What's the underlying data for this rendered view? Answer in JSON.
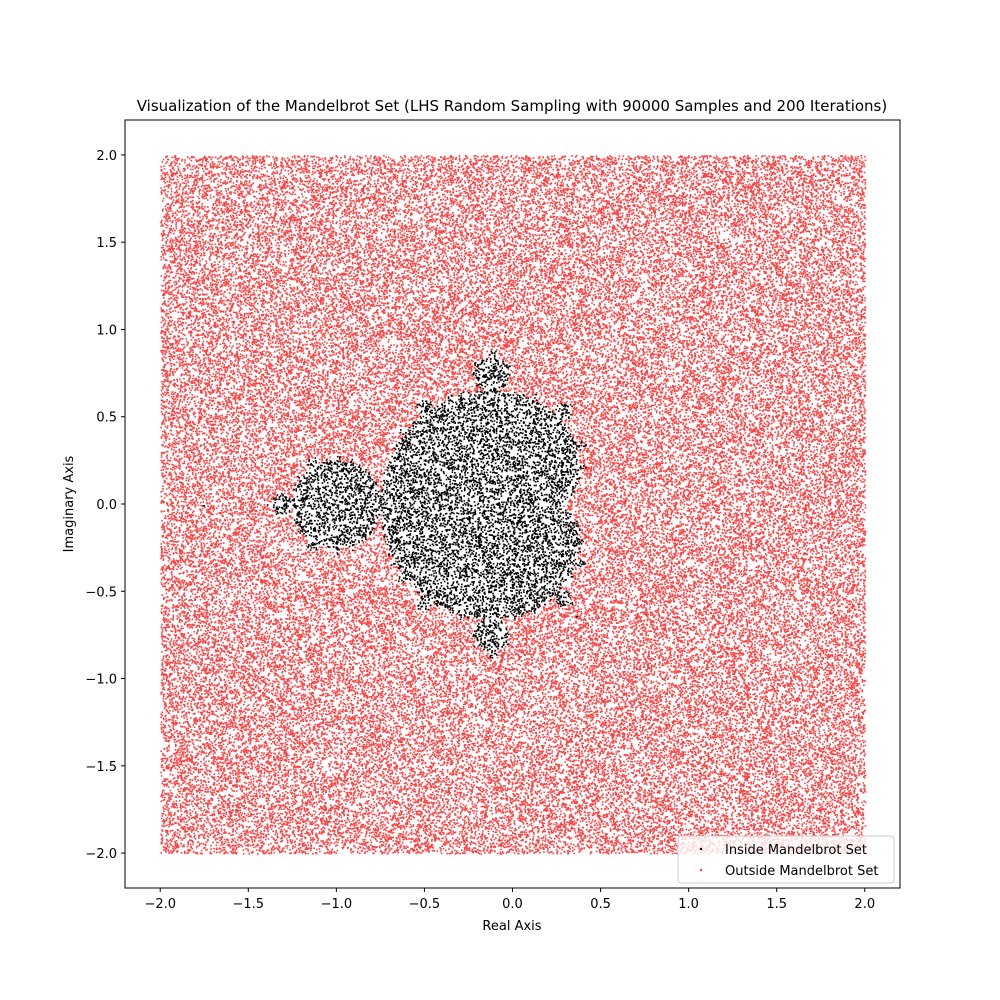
{
  "chart_data": {
    "type": "scatter",
    "title": "Visualization of the Mandelbrot Set (LHS Random Sampling with 90000 Samples and 200 Iterations)",
    "xlabel": "Real Axis",
    "ylabel": "Imaginary Axis",
    "xlim": [
      -2.2,
      2.2
    ],
    "ylim": [
      -2.2,
      2.2
    ],
    "grid": false,
    "legend_position": "bottom-right",
    "samples": 90000,
    "iterations": 200,
    "sample_range": {
      "x": [
        -2.0,
        2.0
      ],
      "y": [
        -2.0,
        2.0
      ]
    },
    "x_ticks": [
      {
        "value": -2.0,
        "label": "−2.0"
      },
      {
        "value": -1.5,
        "label": "−1.5"
      },
      {
        "value": -1.0,
        "label": "−1.0"
      },
      {
        "value": -0.5,
        "label": "−0.5"
      },
      {
        "value": 0.0,
        "label": "0.0"
      },
      {
        "value": 0.5,
        "label": "0.5"
      },
      {
        "value": 1.0,
        "label": "1.0"
      },
      {
        "value": 1.5,
        "label": "1.5"
      },
      {
        "value": 2.0,
        "label": "2.0"
      }
    ],
    "y_ticks": [
      {
        "value": 2.0,
        "label": "2.0"
      },
      {
        "value": 1.5,
        "label": "1.5"
      },
      {
        "value": 1.0,
        "label": "1.0"
      },
      {
        "value": 0.5,
        "label": "0.5"
      },
      {
        "value": 0.0,
        "label": "0.0"
      },
      {
        "value": -0.5,
        "label": "−0.5"
      },
      {
        "value": -1.0,
        "label": "−1.0"
      },
      {
        "value": -1.5,
        "label": "−1.5"
      },
      {
        "value": -2.0,
        "label": "−2.0"
      }
    ],
    "series": [
      {
        "name": "Inside Mandelbrot Set",
        "color": "#000000"
      },
      {
        "name": "Outside Mandelbrot Set",
        "color": "#ff0000"
      }
    ]
  }
}
